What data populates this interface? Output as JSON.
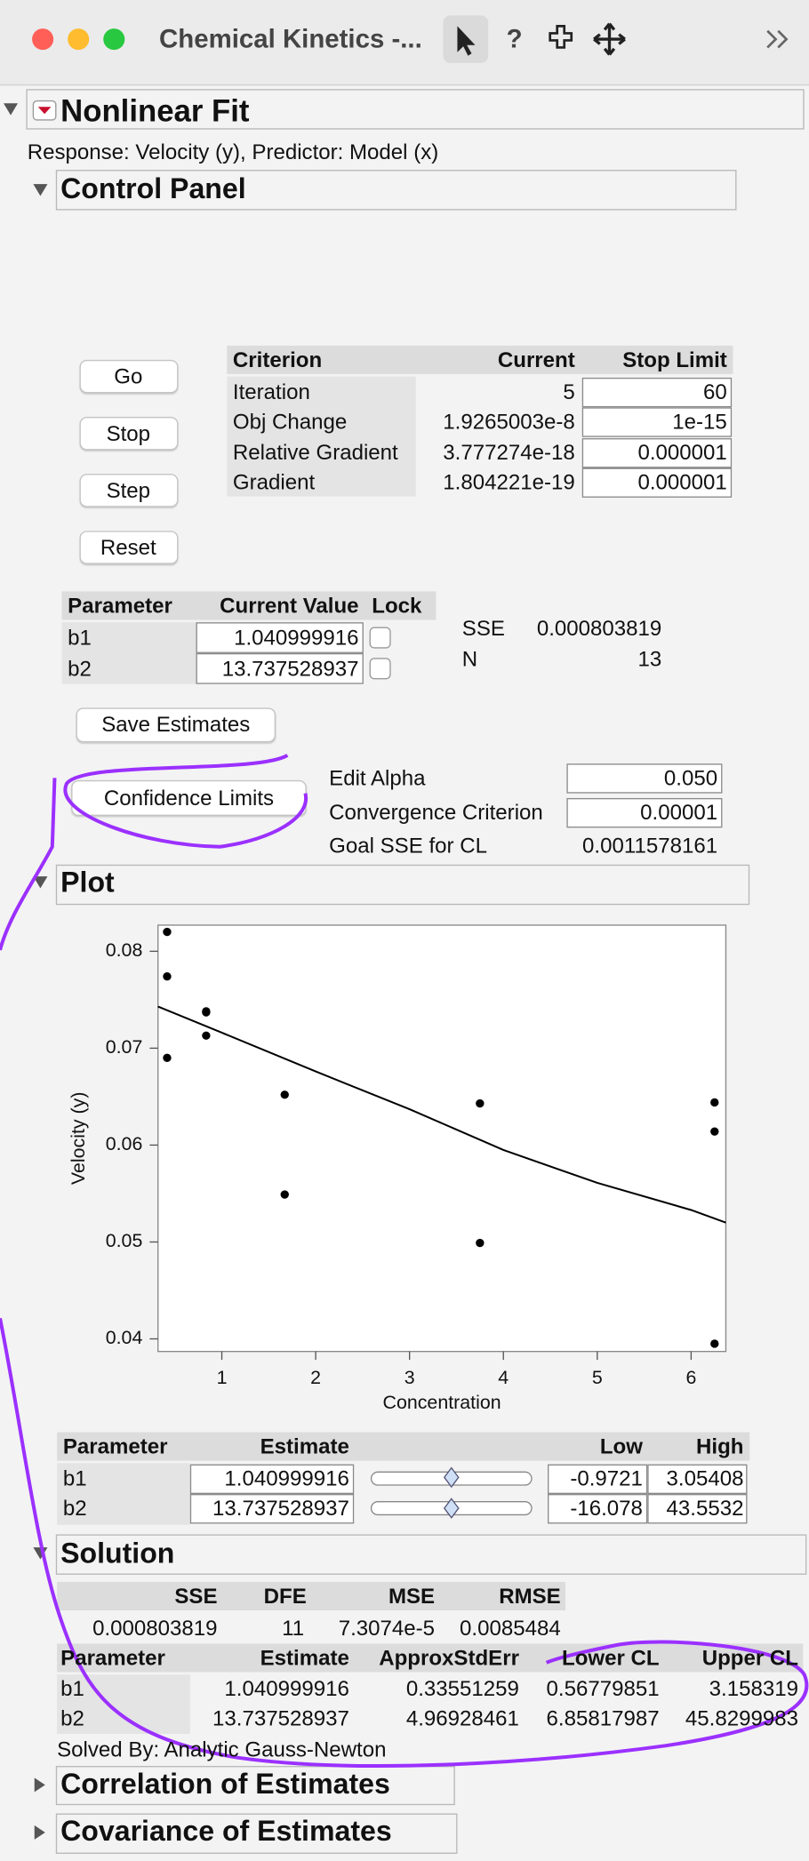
{
  "toolbar": {
    "title": "Chemical Kinetics -...",
    "help_icon": "?"
  },
  "report": {
    "title": "Nonlinear Fit",
    "response": "Response: Velocity (y), Predictor: Model (x)"
  },
  "control_panel": {
    "title": "Control Panel",
    "buttons": [
      "Go",
      "Stop",
      "Step",
      "Reset"
    ],
    "criteria": {
      "headers": [
        "Criterion",
        "Current",
        "Stop Limit"
      ],
      "rows": [
        [
          "Iteration",
          "5",
          "60"
        ],
        [
          "Obj Change",
          "1.9265003e-8",
          "1e-15"
        ],
        [
          "Relative Gradient",
          "3.777274e-18",
          "0.000001"
        ],
        [
          "Gradient",
          "1.804221e-19",
          "0.000001"
        ]
      ]
    },
    "parameters": {
      "headers": [
        "Parameter",
        "Current Value",
        "Lock"
      ],
      "rows": [
        [
          "b1",
          "1.040999916"
        ],
        [
          "b2",
          "13.737528937"
        ]
      ]
    },
    "stats": [
      [
        "SSE",
        "0.000803819"
      ],
      [
        "N",
        "13"
      ]
    ],
    "save_button": "Save Estimates",
    "cl_button": "Confidence Limits",
    "alpha": [
      [
        "Edit Alpha",
        "0.050"
      ],
      [
        "Convergence Criterion",
        "0.00001"
      ],
      [
        "Goal SSE for CL",
        "0.0011578161"
      ]
    ]
  },
  "plot": {
    "title": "Plot",
    "chart_data": {
      "type": "scatter",
      "x_label": "Concentration",
      "y_label": "Velocity (y)",
      "x": [
        0.417,
        0.417,
        0.417,
        0.833,
        0.833,
        0.833,
        1.67,
        1.67,
        3.75,
        3.75,
        6.25,
        6.25,
        6.25
      ],
      "values": [
        0.082,
        0.0774,
        0.069,
        0.0737,
        0.0738,
        0.0713,
        0.0652,
        0.0549,
        0.0643,
        0.0499,
        0.0644,
        0.0614,
        0.0395
      ],
      "color": "#000000",
      "fit": {
        "x": [
          0.32,
          1,
          2,
          3,
          4,
          5,
          6,
          6.37
        ],
        "values": [
          0.0743,
          0.0716,
          0.0676,
          0.0637,
          0.0595,
          0.0561,
          0.0533,
          0.052
        ],
        "color": "#000000"
      },
      "xlim": [
        0.32,
        6.37
      ],
      "ylim": [
        0.0387,
        0.0827
      ],
      "xticks": [
        1,
        2,
        3,
        4,
        5,
        6
      ],
      "yticks": [
        0.04,
        0.05,
        0.06,
        0.07,
        0.08
      ]
    }
  },
  "profiler": {
    "headers": [
      "Parameter",
      "Estimate",
      "Low",
      "High"
    ],
    "rows": [
      [
        "b1",
        "1.040999916",
        "-0.9721",
        "3.05408"
      ],
      [
        "b2",
        "13.737528937",
        "-16.078",
        "43.5532"
      ]
    ]
  },
  "solution": {
    "title": "Solution",
    "fit_stats": {
      "headers": [
        "SSE",
        "DFE",
        "MSE",
        "RMSE"
      ],
      "values": [
        "0.000803819",
        "11",
        "7.3074e-5",
        "0.0085484"
      ]
    },
    "estimates": {
      "headers": [
        "Parameter",
        "Estimate",
        "ApproxStdErr",
        "Lower CL",
        "Upper CL"
      ],
      "rows": [
        [
          "b1",
          "1.040999916",
          "0.33551259",
          "0.56779851",
          "3.158319"
        ],
        [
          "b2",
          "13.737528937",
          "4.96928461",
          "6.85817987",
          "45.8299983"
        ]
      ]
    },
    "solved_by": "Solved By:  Analytic Gauss-Newton"
  },
  "collapsed": [
    "Correlation of Estimates",
    "Covariance of Estimates"
  ]
}
